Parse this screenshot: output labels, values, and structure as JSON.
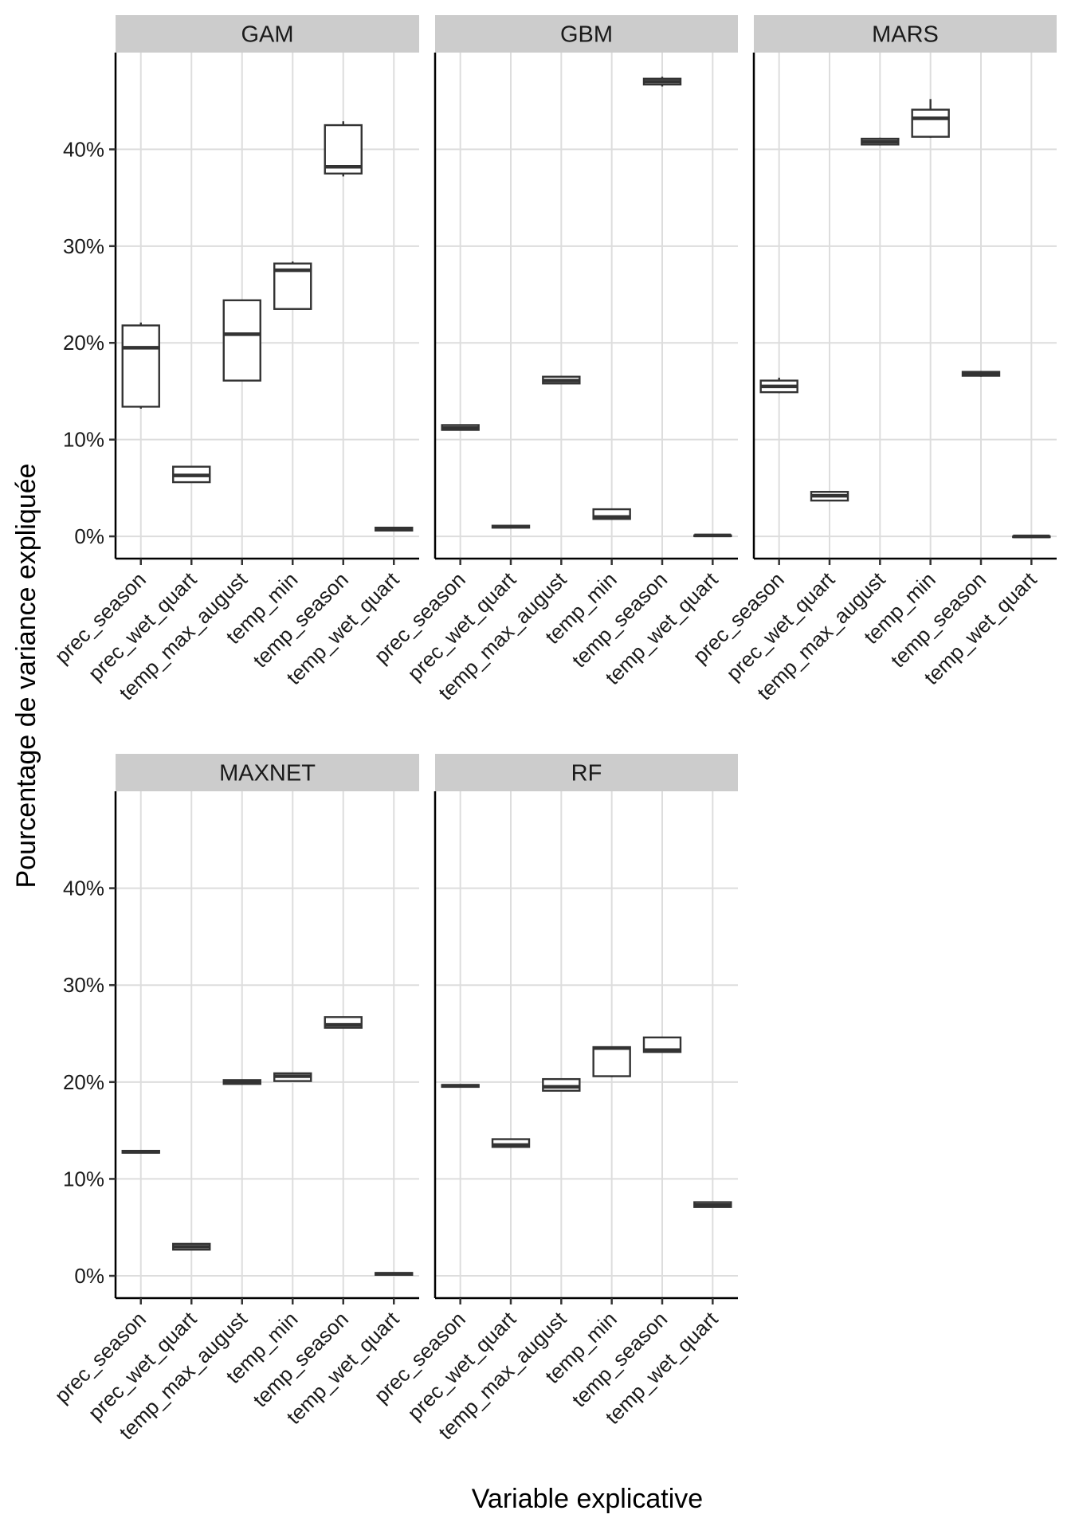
{
  "chart_data": {
    "type": "boxplot",
    "facet_layout": "3 columns x 2 rows, free x-axis per panel, shared y-axis",
    "xlabel": "Variable explicative",
    "ylabel": "Pourcentage de variance expliquée",
    "ylim": [
      -2.3,
      50
    ],
    "yticks": [
      0,
      10,
      20,
      30,
      40
    ],
    "yticks_labels": [
      "0%",
      "10%",
      "20%",
      "30%",
      "40%"
    ],
    "categories": [
      "prec_season",
      "prec_wet_quart",
      "temp_max_august",
      "temp_min",
      "temp_season",
      "temp_wet_quart"
    ],
    "grid": true,
    "panels": [
      {
        "name": "GAM",
        "boxes": [
          {
            "min": 13.2,
            "q1": 13.4,
            "median": 19.5,
            "q3": 21.8,
            "max": 22.1
          },
          {
            "min": 5.6,
            "q1": 5.6,
            "median": 6.3,
            "q3": 7.2,
            "max": 7.2
          },
          {
            "min": 16.1,
            "q1": 16.1,
            "median": 20.9,
            "q3": 24.4,
            "max": 24.4
          },
          {
            "min": 23.5,
            "q1": 23.5,
            "median": 27.5,
            "q3": 28.2,
            "max": 28.4
          },
          {
            "min": 37.2,
            "q1": 37.5,
            "median": 38.2,
            "q3": 42.5,
            "max": 42.9
          },
          {
            "min": 0.6,
            "q1": 0.6,
            "median": 0.8,
            "q3": 0.9,
            "max": 0.9
          }
        ]
      },
      {
        "name": "GBM",
        "boxes": [
          {
            "min": 11.0,
            "q1": 11.0,
            "median": 11.2,
            "q3": 11.5,
            "max": 11.5
          },
          {
            "min": 0.9,
            "q1": 0.9,
            "median": 1.0,
            "q3": 1.1,
            "max": 1.1
          },
          {
            "min": 15.8,
            "q1": 15.8,
            "median": 16.1,
            "q3": 16.5,
            "max": 16.6
          },
          {
            "min": 1.8,
            "q1": 1.8,
            "median": 2.0,
            "q3": 2.8,
            "max": 2.8
          },
          {
            "min": 46.5,
            "q1": 46.7,
            "median": 47.0,
            "q3": 47.3,
            "max": 47.5
          },
          {
            "min": 0.1,
            "q1": 0.1,
            "median": 0.1,
            "q3": 0.1,
            "max": 0.1
          }
        ]
      },
      {
        "name": "MARS",
        "boxes": [
          {
            "min": 14.8,
            "q1": 14.9,
            "median": 15.5,
            "q3": 16.1,
            "max": 16.4
          },
          {
            "min": 3.7,
            "q1": 3.7,
            "median": 4.2,
            "q3": 4.6,
            "max": 4.6
          },
          {
            "min": 40.4,
            "q1": 40.5,
            "median": 40.8,
            "q3": 41.1,
            "max": 41.2
          },
          {
            "min": 41.2,
            "q1": 41.3,
            "median": 43.2,
            "q3": 44.1,
            "max": 45.2
          },
          {
            "min": 16.5,
            "q1": 16.6,
            "median": 16.8,
            "q3": 17.0,
            "max": 17.1
          },
          {
            "min": 0.0,
            "q1": 0.0,
            "median": 0.0,
            "q3": 0.0,
            "max": 0.0
          }
        ]
      },
      {
        "name": "MAXNET",
        "boxes": [
          {
            "min": 12.7,
            "q1": 12.7,
            "median": 12.8,
            "q3": 12.9,
            "max": 12.9
          },
          {
            "min": 2.7,
            "q1": 2.7,
            "median": 3.0,
            "q3": 3.3,
            "max": 3.3
          },
          {
            "min": 19.8,
            "q1": 19.8,
            "median": 20.0,
            "q3": 20.2,
            "max": 20.2
          },
          {
            "min": 20.1,
            "q1": 20.1,
            "median": 20.6,
            "q3": 20.9,
            "max": 20.9
          },
          {
            "min": 25.6,
            "q1": 25.6,
            "median": 25.9,
            "q3": 26.7,
            "max": 26.7
          },
          {
            "min": 0.1,
            "q1": 0.1,
            "median": 0.2,
            "q3": 0.3,
            "max": 0.3
          }
        ]
      },
      {
        "name": "RF",
        "boxes": [
          {
            "min": 19.5,
            "q1": 19.5,
            "median": 19.6,
            "q3": 19.7,
            "max": 19.7
          },
          {
            "min": 13.3,
            "q1": 13.3,
            "median": 13.5,
            "q3": 14.1,
            "max": 14.1
          },
          {
            "min": 19.1,
            "q1": 19.1,
            "median": 19.5,
            "q3": 20.3,
            "max": 20.3
          },
          {
            "min": 20.5,
            "q1": 20.6,
            "median": 23.5,
            "q3": 23.6,
            "max": 23.6
          },
          {
            "min": 23.1,
            "q1": 23.1,
            "median": 23.3,
            "q3": 24.6,
            "max": 24.6
          },
          {
            "min": 7.1,
            "q1": 7.1,
            "median": 7.3,
            "q3": 7.6,
            "max": 7.6
          }
        ]
      }
    ]
  }
}
